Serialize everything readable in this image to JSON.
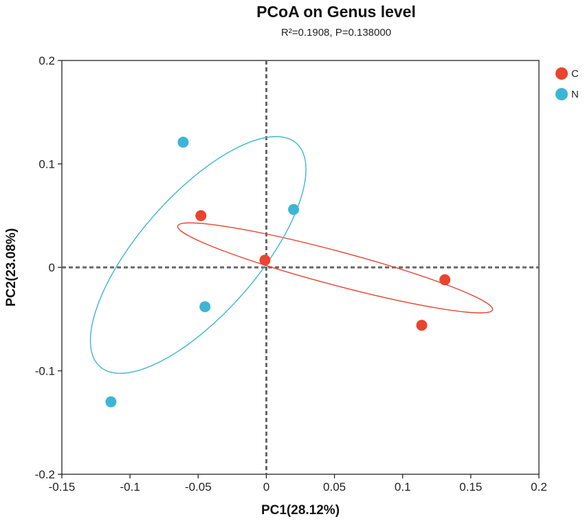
{
  "chart_data": {
    "type": "scatter",
    "title": "PCoA on Genus level",
    "subtitle": "R²=0.1908, P=0.138000",
    "xlabel": "PC1(28.12%)",
    "ylabel": "PC2(23.08%)",
    "xlim": [
      -0.15,
      0.2
    ],
    "ylim": [
      -0.2,
      0.2
    ],
    "x_ticks": [
      -0.15,
      -0.1,
      -0.05,
      0,
      0.05,
      0.1,
      0.15,
      0.2
    ],
    "x_tick_labels": [
      "-0.15",
      "-0.1",
      "-0.05",
      "0",
      "0.05",
      "0.1",
      "0.15",
      "0.2"
    ],
    "y_ticks": [
      -0.2,
      -0.1,
      0,
      0.1,
      0.2
    ],
    "y_tick_labels": [
      "-0.2",
      "-0.1",
      "0",
      "0.1",
      "0.2"
    ],
    "grid": false,
    "reference_lines": {
      "x": 0,
      "y": 0,
      "style": "dashed"
    },
    "legend_position": "top-right",
    "series": [
      {
        "name": "C",
        "color": "#e8442f",
        "points": [
          {
            "x": -0.048,
            "y": 0.05
          },
          {
            "x": -0.001,
            "y": 0.007
          },
          {
            "x": 0.131,
            "y": -0.012
          },
          {
            "x": 0.114,
            "y": -0.056
          }
        ],
        "ellipse": {
          "start": [
            0.146,
            -0.053
          ],
          "vertex_a": [
            0.166,
            -0.041
          ],
          "vertex_b": [
            -0.065,
            0.04
          ],
          "via": [
            -0.0085,
            0.0345
          ]
        }
      },
      {
        "name": "N",
        "color": "#3db5d6",
        "points": [
          {
            "x": -0.061,
            "y": 0.121
          },
          {
            "x": 0.02,
            "y": 0.056
          },
          {
            "x": -0.045,
            "y": -0.038
          },
          {
            "x": -0.114,
            "y": -0.13
          }
        ],
        "ellipse": {
          "start": [
            -0.093,
            -0.141
          ],
          "vertex_a": [
            0.022,
            0.12
          ],
          "vertex_b": [
            -0.122,
            -0.096
          ],
          "via": [
            -0.1205,
            -0.026
          ]
        }
      }
    ]
  }
}
